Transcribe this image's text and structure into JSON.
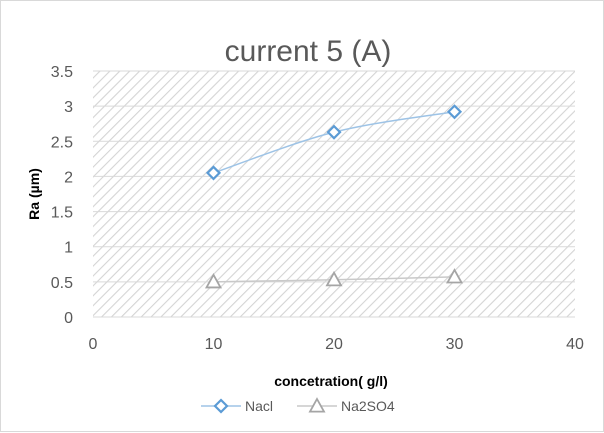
{
  "chart_data": {
    "type": "scatter",
    "title": "current    5 (A)",
    "xlabel": "concetration( g/l)",
    "ylabel": "Ra (µm)",
    "xlim": [
      0,
      40
    ],
    "ylim": [
      0,
      3.5
    ],
    "x_ticks": [
      "0",
      "10",
      "20",
      "30",
      "40"
    ],
    "y_ticks": [
      "0",
      "0.5",
      "1",
      "1.5",
      "2",
      "2.5",
      "3",
      "3.5"
    ],
    "grid": true,
    "legend_position": "bottom",
    "series": [
      {
        "name": "Nacl",
        "marker": "diamond",
        "color": "#5b9bd5",
        "line_color": "#9dc3e6",
        "smooth": true,
        "x": [
          10,
          20,
          30
        ],
        "y": [
          2.05,
          2.63,
          2.92
        ]
      },
      {
        "name": "Na2SO4",
        "marker": "triangle",
        "color": "#a5a5a5",
        "line_color": "#c9c9c9",
        "smooth": true,
        "x": [
          10,
          20,
          30
        ],
        "y": [
          0.5,
          0.53,
          0.57
        ]
      }
    ]
  }
}
